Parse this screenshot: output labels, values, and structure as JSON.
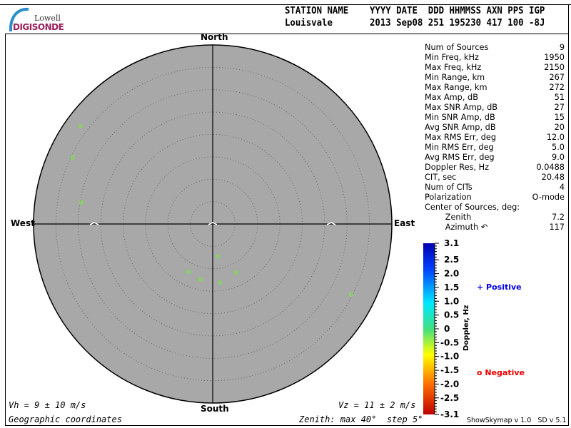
{
  "logo": {
    "line1": "Lowell",
    "line2": "DIGISONDE"
  },
  "header": {
    "labels": "STATION NAME    YYYY DATE  DDD HHMMSS AXN PPS IGP",
    "values": "Louisvale       2013 Sep08 251 195230 417 100 -8J"
  },
  "directions": {
    "north": "North",
    "south": "South",
    "east": "East",
    "west": "West"
  },
  "stats": [
    {
      "label": "Num of Sources",
      "value": "9"
    },
    {
      "label": "Min Freq, kHz",
      "value": "1950"
    },
    {
      "label": "Max Freq, kHz",
      "value": "2150"
    },
    {
      "label": "Min Range, km",
      "value": "267"
    },
    {
      "label": "Max Range, km",
      "value": "272"
    },
    {
      "label": "Max Amp, dB",
      "value": "51"
    },
    {
      "label": "Max SNR Amp, dB",
      "value": "27"
    },
    {
      "label": "Min SNR Amp, dB",
      "value": "15"
    },
    {
      "label": "Avg SNR Amp, dB",
      "value": "20"
    },
    {
      "label": "Max RMS Err, deg",
      "value": "12.0"
    },
    {
      "label": "Min RMS Err, deg",
      "value": "5.0"
    },
    {
      "label": "Avg RMS Err, deg",
      "value": "9.0"
    },
    {
      "label": "Doppler Res, Hz",
      "value": "0.0488"
    },
    {
      "label": "CIT, sec",
      "value": "20.48"
    },
    {
      "label": "Num of CITs",
      "value": "4"
    },
    {
      "label": "Polarization",
      "value": "O-mode"
    },
    {
      "label": "Center of Sources, deg:",
      "value": ""
    },
    {
      "label": "        Zenith",
      "value": "7.2"
    },
    {
      "label": "        Azimuth ↶",
      "value": "117"
    }
  ],
  "footer": {
    "vh": "Vh = 9 ± 10 m/s",
    "vz": "Vz = 11 ± 2 m/s",
    "coords": "Geographic coordinates",
    "zenith": "Zenith: max 40°  step 5°",
    "version": "ShowSkymap v 1.0   SD v 5.1"
  },
  "legend": {
    "positive": "Positive",
    "negative": "Negative",
    "positive_color": "#0000ee",
    "negative_color": "#ee0000"
  },
  "chart_data": {
    "type": "scatter",
    "projection": "polar skymap",
    "zenith_max_deg": 40,
    "zenith_step_deg": 5,
    "background_color": "#a8a8a8",
    "point_color": "#7fe050",
    "points": [
      {
        "zenith": 36.7,
        "azimuth": 306.5,
        "doppler": -0.2
      },
      {
        "zenith": 34.6,
        "azimuth": 295.4,
        "doppler": -0.2
      },
      {
        "zenith": 29.7,
        "azimuth": 279.3,
        "doppler": -0.2
      },
      {
        "zenith": 7.3,
        "azimuth": 171.2,
        "doppler": -0.2
      },
      {
        "zenith": 12.0,
        "azimuth": 206.9,
        "doppler": -0.2
      },
      {
        "zenith": 12.7,
        "azimuth": 192.3,
        "doppler": -0.2
      },
      {
        "zenith": 13.2,
        "azimuth": 173.0,
        "doppler": -0.2
      },
      {
        "zenith": 12.0,
        "azimuth": 154.1,
        "doppler": -0.2
      },
      {
        "zenith": 34.7,
        "azimuth": 117.0,
        "doppler": -0.2
      }
    ],
    "colorbar": {
      "label": "Doppler, Hz",
      "range": [
        -3.1,
        3.1
      ],
      "ticks": [
        "3.1",
        "2.5",
        "2.0",
        "1.5",
        "1.0",
        "0.5",
        "0",
        "-0.5",
        "-1.0",
        "-1.5",
        "-2.0",
        "-2.5",
        "-3.1"
      ],
      "tick_values": [
        3.1,
        2.5,
        2.0,
        1.5,
        1.0,
        0.5,
        0,
        -0.5,
        -1.0,
        -1.5,
        -2.0,
        -2.5,
        -3.1
      ]
    }
  }
}
